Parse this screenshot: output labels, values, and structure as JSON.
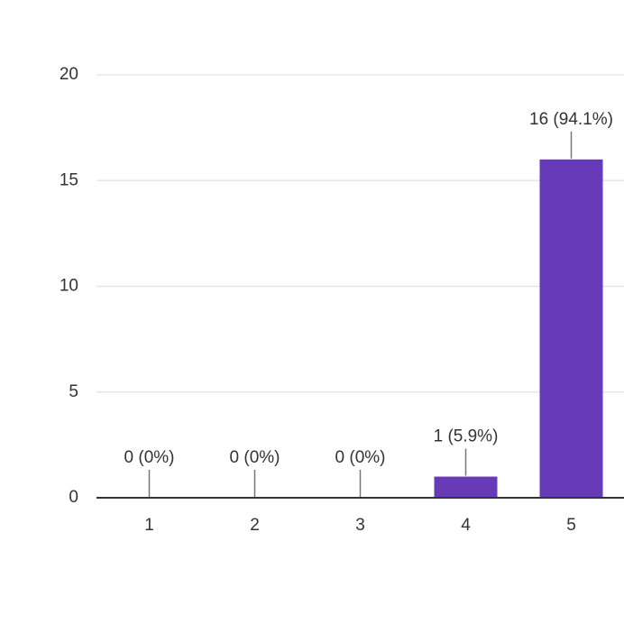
{
  "chart_data": {
    "type": "bar",
    "categories": [
      "1",
      "2",
      "3",
      "4",
      "5"
    ],
    "values": [
      0,
      0,
      0,
      1,
      16
    ],
    "value_labels": [
      "0 (0%)",
      "0 (0%)",
      "0 (0%)",
      "1 (5.9%)",
      "16 (94.1%)"
    ],
    "color": "#673ab7",
    "ylim": [
      0,
      20
    ],
    "yticks": [
      0,
      5,
      10,
      15,
      20
    ],
    "grid": true
  }
}
